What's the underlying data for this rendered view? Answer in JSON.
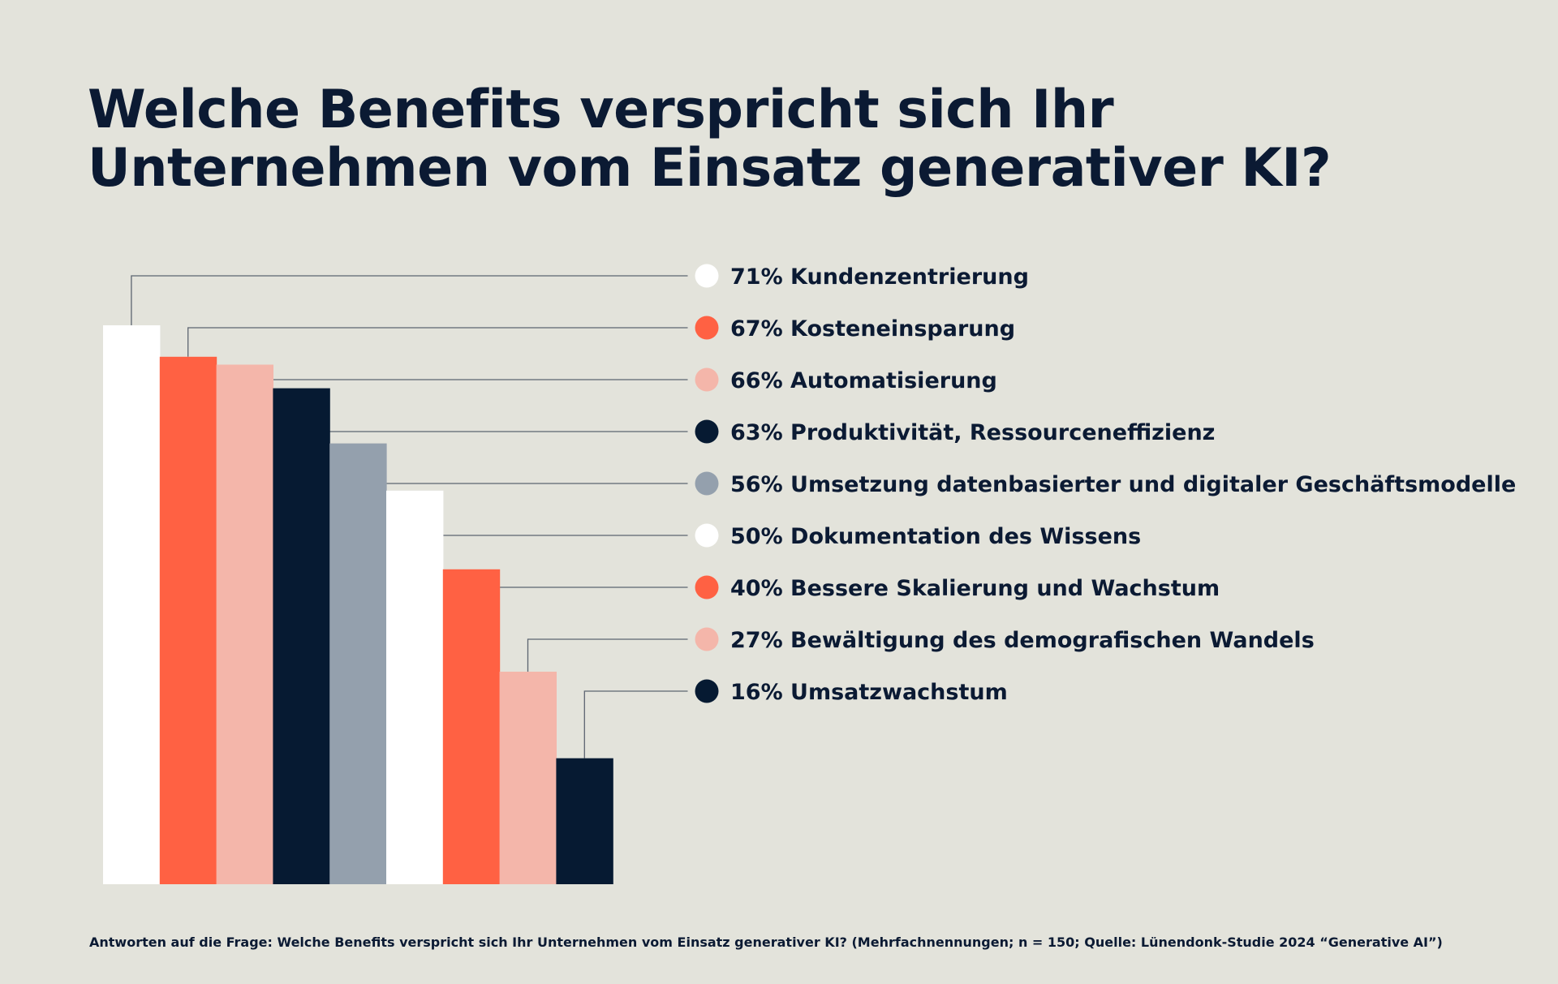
{
  "title_lines": [
    "Welche Benefits verspricht sich Ihr",
    "Unternehmen vom Einsatz generativer KI?"
  ],
  "footnote": "Antworten auf die Frage: Welche Benefits verspricht sich Ihr Unternehmen vom Einsatz generativer KI? (Mehrfachnennungen; n = 150; Quelle: Lünendonk-Studie 2024 “Generative AI”)",
  "chart_data": {
    "type": "bar",
    "categories": [
      "Kundenzentrierung",
      "Kosteneinsparung",
      "Automatisierung",
      "Produktivität, Ressourceneffizienz",
      "Umsetzung datenbasierter und digitaler Geschäftsmodelle",
      "Dokumentation des Wissens",
      "Bessere Skalierung und Wachstum",
      "Bewältigung des demografischen Wandels",
      "Umsatzwachstum"
    ],
    "values": [
      71,
      67,
      66,
      63,
      56,
      50,
      40,
      27,
      16
    ],
    "value_labels": [
      "71%",
      "67%",
      "66%",
      "63%",
      "56%",
      "50%",
      "40%",
      "27%",
      "16%"
    ],
    "colors": [
      "#ffffff",
      "#ff6143",
      "#f4b6aa",
      "#061a32",
      "#94a0ad",
      "#ffffff",
      "#ff6143",
      "#f4b6aa",
      "#061a32"
    ],
    "unit": "%",
    "ylim": [
      0,
      71
    ],
    "grid": false,
    "legend_position": "right"
  },
  "colors": {
    "background": "#e3e3db",
    "text": "#0b1a33",
    "connector": "#5c6470"
  }
}
